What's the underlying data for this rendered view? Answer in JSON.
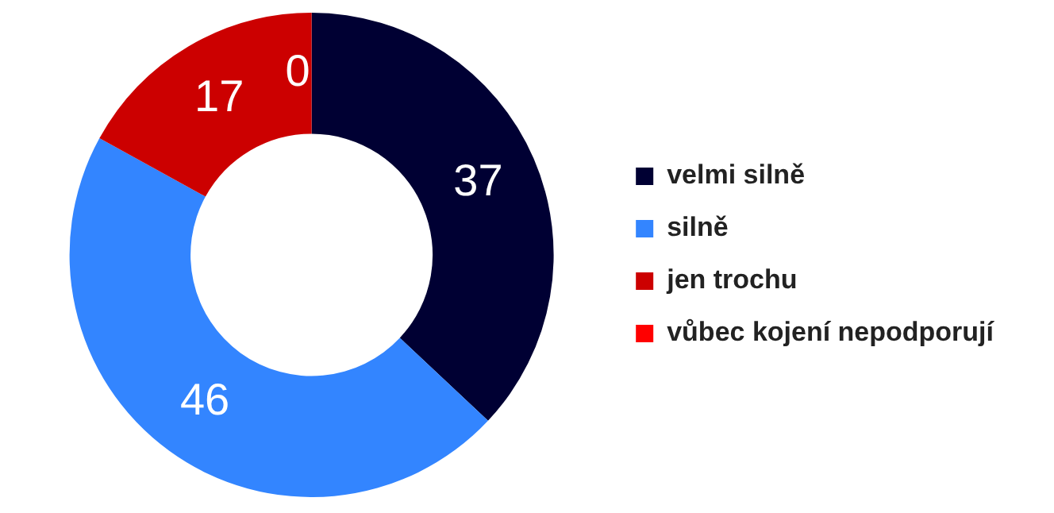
{
  "chart_data": {
    "type": "donut",
    "categories": [
      "velmi silně",
      "silně",
      "jen trochu",
      "vůbec kojení nepodporují"
    ],
    "values": [
      37,
      46,
      17,
      0
    ],
    "value_labels": [
      "37",
      "46",
      "17",
      "0"
    ],
    "colors": [
      "#000033",
      "#3385ff",
      "#cc0000",
      "#ff0000"
    ],
    "legend": "right"
  }
}
